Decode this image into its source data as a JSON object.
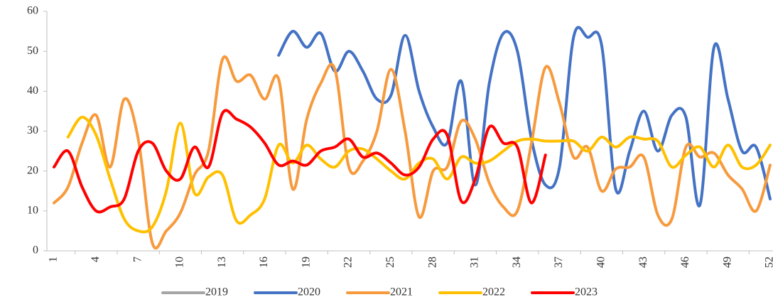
{
  "chart_data": {
    "type": "line",
    "categories": [
      1,
      null,
      null,
      4,
      null,
      null,
      7,
      null,
      null,
      10,
      null,
      null,
      13,
      null,
      null,
      16,
      null,
      null,
      19,
      null,
      null,
      22,
      null,
      null,
      25,
      null,
      null,
      28,
      null,
      null,
      31,
      null,
      null,
      34,
      null,
      null,
      37,
      null,
      null,
      40,
      null,
      null,
      43,
      null,
      null,
      46,
      null,
      null,
      49,
      null,
      null,
      52
    ],
    "ylim": [
      0,
      60
    ],
    "yticks": [
      0,
      10,
      20,
      30,
      40,
      50,
      60
    ],
    "grid": false,
    "legend": "bottom",
    "series": [
      {
        "name": "2019",
        "color": "#a5a5a5",
        "values": [
          null,
          null,
          null,
          null,
          null,
          null,
          null,
          null,
          null,
          null,
          null,
          null,
          null,
          null,
          null,
          null,
          null,
          null,
          null,
          null,
          null,
          null,
          null,
          null,
          null,
          null,
          null,
          null,
          null,
          null,
          null,
          null,
          null,
          null,
          null,
          null,
          null,
          null,
          null,
          null,
          null,
          null,
          null,
          null,
          null,
          null,
          null,
          null,
          null,
          null,
          null,
          null
        ]
      },
      {
        "name": "2020",
        "color": "#4472c4",
        "values": [
          null,
          null,
          null,
          null,
          null,
          null,
          null,
          null,
          null,
          null,
          null,
          null,
          null,
          null,
          null,
          null,
          49,
          55,
          51,
          54.5,
          45,
          50,
          45,
          38,
          39,
          54,
          40,
          31,
          27,
          42.5,
          16.5,
          42,
          54.5,
          50,
          28,
          16.5,
          21,
          53.5,
          53.5,
          51.5,
          15.5,
          25,
          35,
          25,
          34,
          33.5,
          11.5,
          51,
          38,
          25,
          26,
          13
        ]
      },
      {
        "name": "2021",
        "color": "#f79a3e",
        "values": [
          12,
          16,
          27,
          34,
          21,
          38,
          28,
          2,
          5,
          9.5,
          19,
          25,
          48,
          42.5,
          44,
          38,
          43,
          15.5,
          33,
          42,
          45.5,
          21,
          22.5,
          30,
          45.5,
          30,
          8.5,
          20,
          21,
          32.5,
          28,
          17,
          11,
          10,
          27,
          46,
          37,
          23.5,
          26,
          15,
          20.5,
          21,
          23.5,
          9,
          8,
          26,
          23.5,
          24.5,
          19,
          15.5,
          10,
          21.5
        ]
      },
      {
        "name": "2022",
        "color": "#ffc000",
        "values": [
          null,
          28.5,
          33.5,
          29,
          18,
          8,
          5,
          6,
          15,
          32,
          14.5,
          18.5,
          19,
          7.5,
          9,
          13,
          26.5,
          22,
          26.5,
          23,
          21,
          25,
          25.5,
          23,
          20,
          18,
          22,
          23,
          18,
          23.5,
          22,
          22.5,
          25,
          27.5,
          28,
          27.5,
          27.5,
          27.5,
          25,
          28.5,
          26,
          28.5,
          28,
          27.5,
          21,
          24,
          26,
          21,
          26.5,
          21,
          21.5,
          26.5
        ]
      },
      {
        "name": "2023",
        "color": "#ff0000",
        "values": [
          21,
          25,
          16,
          10,
          11,
          13,
          25,
          27,
          20,
          18,
          26,
          21,
          34.5,
          33,
          31,
          27,
          21.5,
          22.5,
          21.5,
          25,
          26,
          28,
          23.5,
          24.5,
          22,
          19,
          21,
          28,
          29,
          12.5,
          18,
          31,
          27,
          26,
          12,
          24,
          null,
          null,
          null,
          null,
          null,
          null,
          null,
          null,
          null,
          null,
          null,
          null,
          null,
          null,
          null,
          null
        ]
      }
    ]
  }
}
